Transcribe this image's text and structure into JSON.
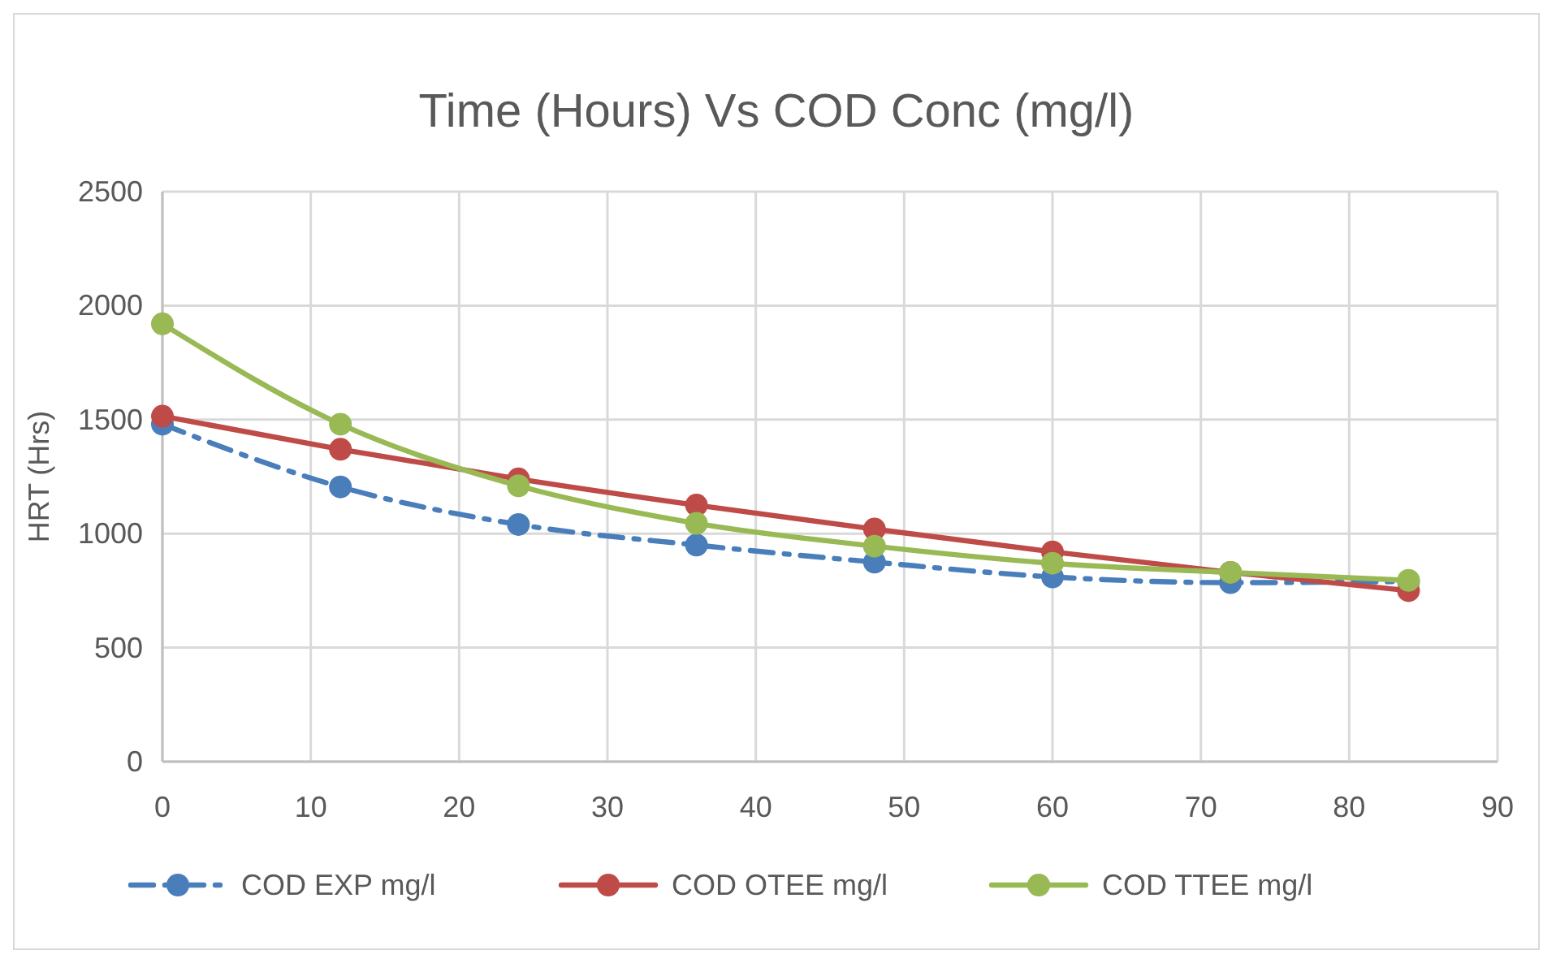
{
  "chart_data": {
    "type": "line",
    "title": "Time (Hours) Vs COD Conc (mg/l)",
    "ylabel": "HRT (Hrs)",
    "x": [
      0,
      12,
      24,
      36,
      48,
      60,
      72,
      84
    ],
    "xlim": [
      0,
      90
    ],
    "xticks": [
      0,
      10,
      20,
      30,
      40,
      50,
      60,
      70,
      80,
      90
    ],
    "ylim": [
      0,
      2500
    ],
    "yticks": [
      0,
      500,
      1000,
      1500,
      2000,
      2500
    ],
    "grid": true,
    "legend": "bottom",
    "marker": "circle",
    "series": [
      {
        "name": "COD EXP mg/l",
        "color": "#4a7ebb",
        "line_style": "dashed",
        "values": [
          1480,
          1205,
          1040,
          950,
          875,
          810,
          785,
          790
        ]
      },
      {
        "name": "COD OTEE mg/l",
        "color": "#be4b48",
        "line_style": "solid",
        "values": [
          1515,
          1370,
          1240,
          1125,
          1020,
          920,
          830,
          750
        ]
      },
      {
        "name": "COD TTEE mg/l",
        "color": "#98b954",
        "line_style": "solid",
        "values": [
          1920,
          1480,
          1210,
          1045,
          945,
          870,
          830,
          795
        ]
      }
    ]
  }
}
